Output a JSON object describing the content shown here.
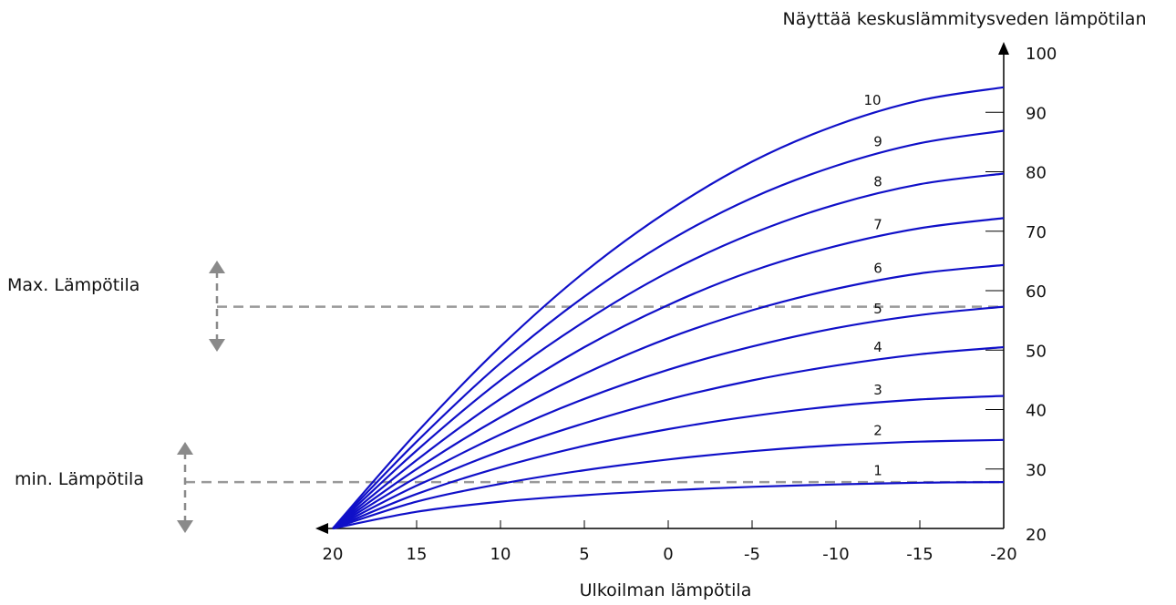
{
  "chart_data": {
    "type": "line",
    "xlabel": "Ulkoilman lämpötila",
    "ylabel": "Näyttää keskuslämmitysveden lämpötilan",
    "x_ticks": [
      "20",
      "15",
      "10",
      "5",
      "0",
      "-5",
      "-10",
      "-15",
      "-20"
    ],
    "y_ticks": [
      "20",
      "30",
      "40",
      "50",
      "60",
      "70",
      "80",
      "90",
      "100"
    ],
    "xlim": [
      20,
      -20
    ],
    "ylim": [
      20,
      100
    ],
    "x_reversed": true,
    "grid": false,
    "line_color": "#1010c8",
    "x": [
      20,
      15,
      10,
      5,
      0,
      -5,
      -10,
      -15,
      -20
    ],
    "series": [
      {
        "name": "1",
        "values": [
          20,
          22.8,
          24.5,
          25.6,
          26.4,
          27.0,
          27.4,
          27.7,
          27.8
        ]
      },
      {
        "name": "2",
        "values": [
          20,
          24.5,
          27.5,
          29.8,
          31.6,
          33.0,
          34.0,
          34.6,
          34.9
        ]
      },
      {
        "name": "3",
        "values": [
          20,
          25.8,
          30.3,
          33.9,
          36.7,
          38.9,
          40.6,
          41.7,
          42.3
        ]
      },
      {
        "name": "4",
        "values": [
          20,
          27.2,
          33.0,
          37.7,
          41.7,
          44.9,
          47.4,
          49.3,
          50.5
        ]
      },
      {
        "name": "5",
        "values": [
          20,
          28.6,
          35.8,
          41.8,
          46.7,
          50.6,
          53.7,
          55.9,
          57.3
        ]
      },
      {
        "name": "6",
        "values": [
          20,
          30.0,
          38.7,
          46.0,
          52.0,
          56.7,
          60.3,
          62.9,
          64.3
        ]
      },
      {
        "name": "7",
        "values": [
          20,
          31.5,
          41.8,
          50.5,
          57.6,
          63.3,
          67.5,
          70.5,
          72.2
        ]
      },
      {
        "name": "8",
        "values": [
          20,
          33.1,
          44.9,
          54.8,
          63.1,
          69.6,
          74.5,
          77.9,
          79.7
        ]
      },
      {
        "name": "9",
        "values": [
          20,
          34.6,
          47.8,
          59.0,
          68.3,
          75.6,
          81.0,
          84.8,
          86.9
        ]
      },
      {
        "name": "10",
        "values": [
          20,
          36.1,
          50.6,
          63.1,
          73.4,
          81.7,
          87.8,
          92.0,
          94.2
        ]
      }
    ],
    "reference_lines": [
      {
        "name": "Max. Lämpötila",
        "y": 57.3
      },
      {
        "name": "min. Lämpötila",
        "y": 27.8
      }
    ]
  }
}
